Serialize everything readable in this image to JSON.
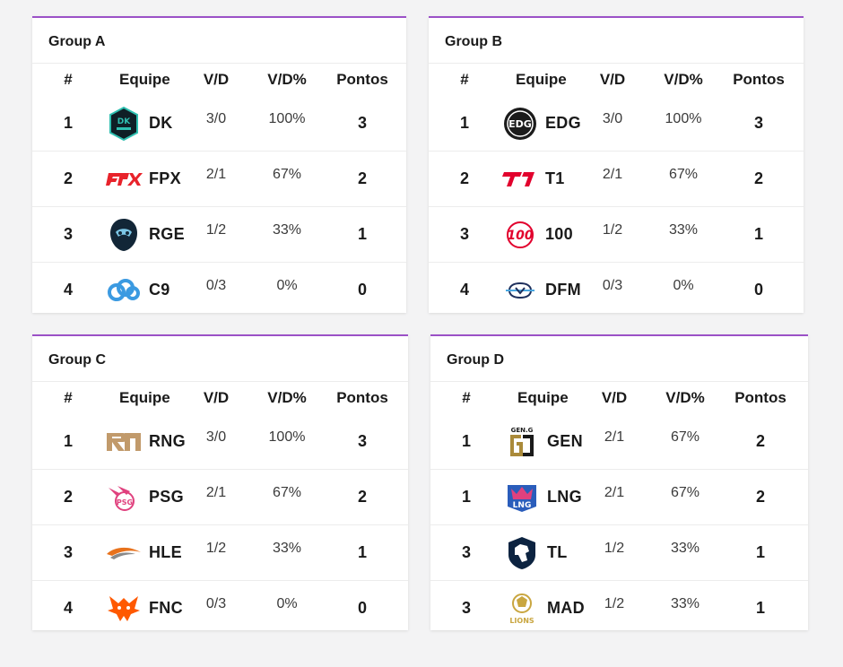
{
  "headers": {
    "rank": "#",
    "team": "Equipe",
    "wl": "V/D",
    "pct": "V/D%",
    "points": "Pontos"
  },
  "groups": [
    {
      "title": "Group A",
      "rows": [
        {
          "rank": "1",
          "logo": "dk-logo-icon",
          "team": "DK",
          "wl": "3/0",
          "pct": "100%",
          "points": "3"
        },
        {
          "rank": "2",
          "logo": "fpx-logo-icon",
          "team": "FPX",
          "wl": "2/1",
          "pct": "67%",
          "points": "2"
        },
        {
          "rank": "3",
          "logo": "rge-logo-icon",
          "team": "RGE",
          "wl": "1/2",
          "pct": "33%",
          "points": "1"
        },
        {
          "rank": "4",
          "logo": "c9-logo-icon",
          "team": "C9",
          "wl": "0/3",
          "pct": "0%",
          "points": "0"
        }
      ]
    },
    {
      "title": "Group B",
      "rows": [
        {
          "rank": "1",
          "logo": "edg-logo-icon",
          "team": "EDG",
          "wl": "3/0",
          "pct": "100%",
          "points": "3"
        },
        {
          "rank": "2",
          "logo": "t1-logo-icon",
          "team": "T1",
          "wl": "2/1",
          "pct": "67%",
          "points": "2"
        },
        {
          "rank": "3",
          "logo": "100-logo-icon",
          "team": "100",
          "wl": "1/2",
          "pct": "33%",
          "points": "1"
        },
        {
          "rank": "4",
          "logo": "dfm-logo-icon",
          "team": "DFM",
          "wl": "0/3",
          "pct": "0%",
          "points": "0"
        }
      ]
    },
    {
      "title": "Group C",
      "rows": [
        {
          "rank": "1",
          "logo": "rng-logo-icon",
          "team": "RNG",
          "wl": "3/0",
          "pct": "100%",
          "points": "3"
        },
        {
          "rank": "2",
          "logo": "psg-logo-icon",
          "team": "PSG",
          "wl": "2/1",
          "pct": "67%",
          "points": "2"
        },
        {
          "rank": "3",
          "logo": "hle-logo-icon",
          "team": "HLE",
          "wl": "1/2",
          "pct": "33%",
          "points": "1"
        },
        {
          "rank": "4",
          "logo": "fnc-logo-icon",
          "team": "FNC",
          "wl": "0/3",
          "pct": "0%",
          "points": "0"
        }
      ]
    },
    {
      "title": "Group D",
      "rows": [
        {
          "rank": "1",
          "logo": "gen-logo-icon",
          "team": "GEN",
          "wl": "2/1",
          "pct": "67%",
          "points": "2"
        },
        {
          "rank": "1",
          "logo": "lng-logo-icon",
          "team": "LNG",
          "wl": "2/1",
          "pct": "67%",
          "points": "2"
        },
        {
          "rank": "3",
          "logo": "tl-logo-icon",
          "team": "TL",
          "wl": "1/2",
          "pct": "33%",
          "points": "1"
        },
        {
          "rank": "3",
          "logo": "mad-logo-icon",
          "team": "MAD",
          "wl": "1/2",
          "pct": "33%",
          "points": "1"
        }
      ]
    }
  ],
  "logo_text": {
    "gen": "GEN.G",
    "mad": "LIONS",
    "hundred": "100"
  },
  "colors": {
    "accent": "#9b51c7",
    "fpx": "#e8232b",
    "t1": "#e2012d",
    "hundred": "#e2012d",
    "c9": "#3b9ae1",
    "rng": "#c19a6b",
    "psg": "#e0417e",
    "hle": "#e8721c",
    "fnc": "#ff5900",
    "gen": "#aa8a3a",
    "lng": "#2a5dbb",
    "mad": "#c9a640"
  }
}
